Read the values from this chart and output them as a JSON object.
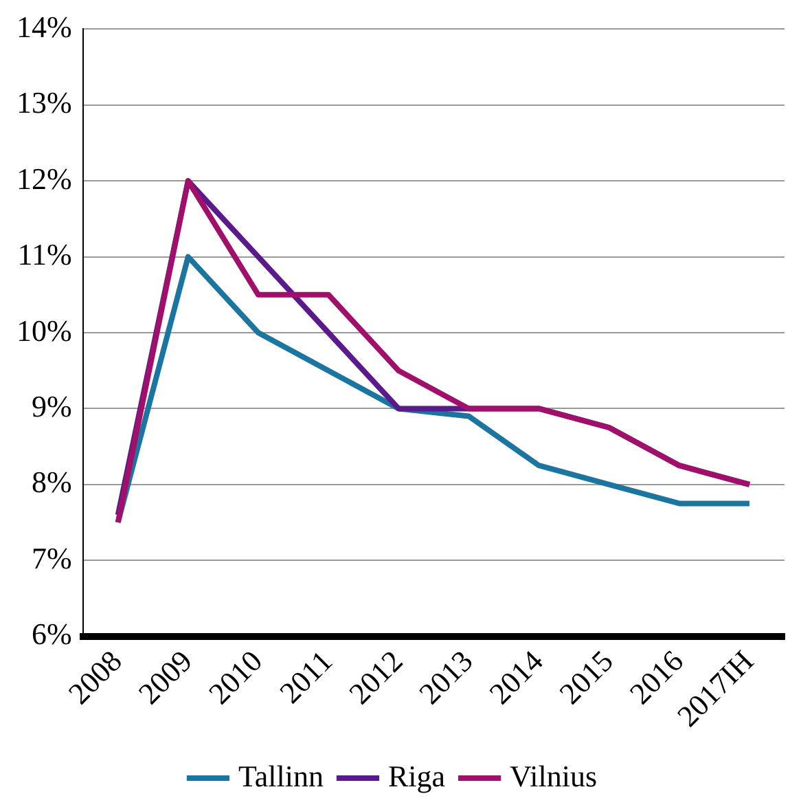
{
  "chart_data": {
    "type": "line",
    "categories": [
      "2008",
      "2009",
      "2010",
      "2011",
      "2012",
      "2013",
      "2014",
      "2015",
      "2016",
      "2017IH"
    ],
    "series": [
      {
        "name": "Tallinn",
        "color": "#1a75a0",
        "values": [
          7.5,
          11,
          10,
          9.5,
          9,
          8.9,
          8.25,
          8,
          7.75,
          7.75
        ]
      },
      {
        "name": "Riga",
        "color": "#5b1a8c",
        "values": [
          7.6,
          12,
          11,
          10,
          9,
          9,
          9,
          8.75,
          8.25,
          8
        ]
      },
      {
        "name": "Vilnius",
        "color": "#a0106a",
        "values": [
          7.5,
          12,
          10.5,
          10.5,
          9.5,
          9,
          9,
          8.75,
          8.25,
          8
        ]
      }
    ],
    "ylim": [
      6,
      14
    ],
    "yticks": [
      {
        "value": 6,
        "label": "6%"
      },
      {
        "value": 7,
        "label": "7%"
      },
      {
        "value": 8,
        "label": "8%"
      },
      {
        "value": 9,
        "label": "9%"
      },
      {
        "value": 10,
        "label": "10%"
      },
      {
        "value": 11,
        "label": "11%"
      },
      {
        "value": 12,
        "label": "12%"
      },
      {
        "value": 13,
        "label": "13%"
      },
      {
        "value": 14,
        "label": "14%"
      }
    ],
    "grid": "y",
    "legend": "bottom",
    "marker": "none",
    "line_style": "solid"
  }
}
